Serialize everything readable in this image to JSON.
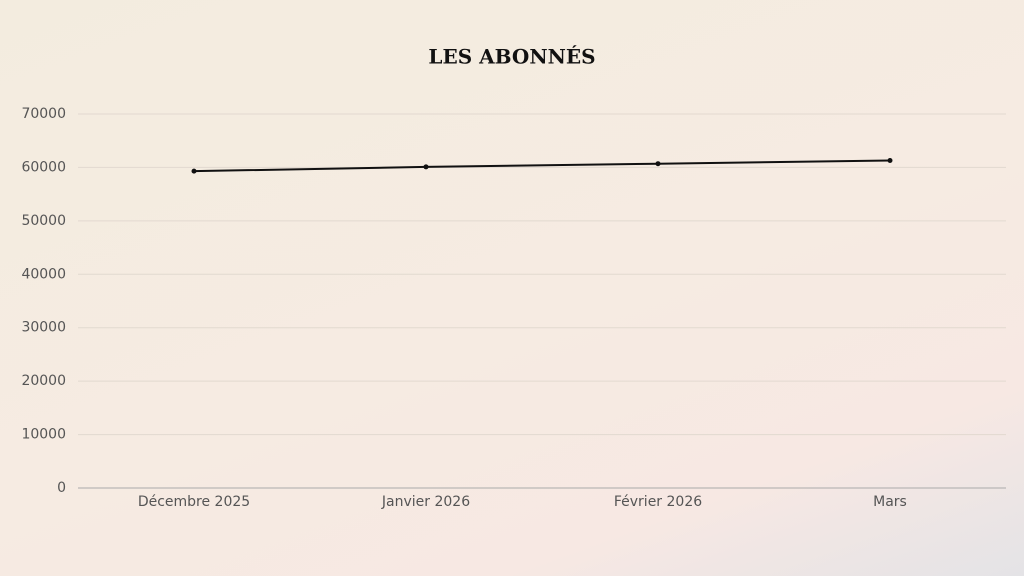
{
  "chart_data": {
    "type": "line",
    "title": "LES ABONNÉS",
    "categories": [
      "Décembre 2025",
      "Janvier 2026",
      "Février 2026",
      "Mars"
    ],
    "values": [
      59300,
      60100,
      60700,
      61300
    ],
    "color": "#111111",
    "ylim": [
      0,
      70000
    ],
    "yticks": [
      0,
      10000,
      20000,
      30000,
      40000,
      50000,
      60000,
      70000
    ],
    "grid": true
  }
}
